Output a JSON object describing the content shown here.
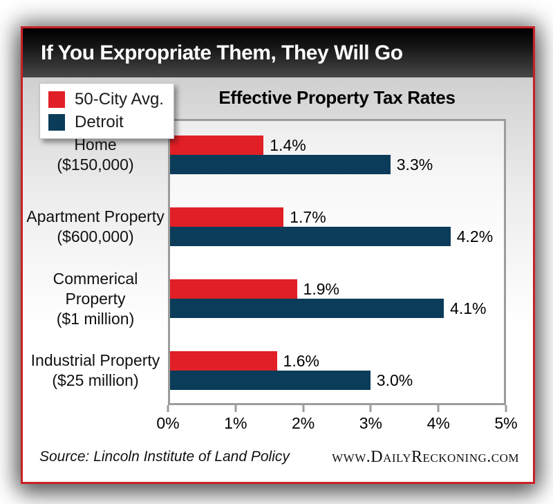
{
  "header": {
    "title": "If You Expropriate Them, They Will Go"
  },
  "legend": {
    "items": [
      {
        "label": "50-City Avg.",
        "color": "#e01f26"
      },
      {
        "label": "Detroit",
        "color": "#0b3c59"
      }
    ]
  },
  "chart_data": {
    "type": "bar",
    "orientation": "horizontal",
    "title": "Effective Property Tax Rates",
    "xlabel": "",
    "ylabel": "",
    "xlim": [
      0,
      5
    ],
    "x_tick_labels": [
      "0%",
      "1%",
      "2%",
      "3%",
      "4%",
      "5%"
    ],
    "grid": false,
    "legend_position": "top-left",
    "categories": [
      "Home ($150,000)",
      "Apartment Property ($600,000)",
      "Commerical Property ($1 million)",
      "Industrial Property ($25 million)"
    ],
    "series": [
      {
        "name": "50-City Avg.",
        "color": "#e01f26",
        "values": [
          1.4,
          1.7,
          1.9,
          1.6
        ]
      },
      {
        "name": "Detroit",
        "color": "#0b3c59",
        "values": [
          3.3,
          4.2,
          4.1,
          3.0
        ]
      }
    ],
    "rows": [
      {
        "label_line1": "Home",
        "label_line2": "($150,000)",
        "avg_value": 1.4,
        "avg_label": "1.4%",
        "detroit_value": 3.3,
        "detroit_label": "3.3%"
      },
      {
        "label_line1": "Apartment Property",
        "label_line2": "($600,000)",
        "avg_value": 1.7,
        "avg_label": "1.7%",
        "detroit_value": 4.2,
        "detroit_label": "4.2%"
      },
      {
        "label_line1": "Commerical Property",
        "label_line2": "($1 million)",
        "avg_value": 1.9,
        "avg_label": "1.9%",
        "detroit_value": 4.1,
        "detroit_label": "4.1%"
      },
      {
        "label_line1": "Industrial Property",
        "label_line2": "($25 million)",
        "avg_value": 1.6,
        "avg_label": "1.6%",
        "detroit_value": 3.0,
        "detroit_label": "3.0%"
      }
    ]
  },
  "footer": {
    "source": "Source: Lincoln Institute of Land Policy",
    "website": "www.DailyReckoning.com"
  },
  "colors": {
    "accent_red": "#e01f26",
    "detroit_navy": "#0b3c59",
    "frame_border_red": "#cb2026",
    "header_gradient_top": "#000000",
    "header_gradient_bottom": "#474747",
    "plot_border_gray": "#9c9c9c",
    "body_gradient_top": "#d0d0d0"
  }
}
